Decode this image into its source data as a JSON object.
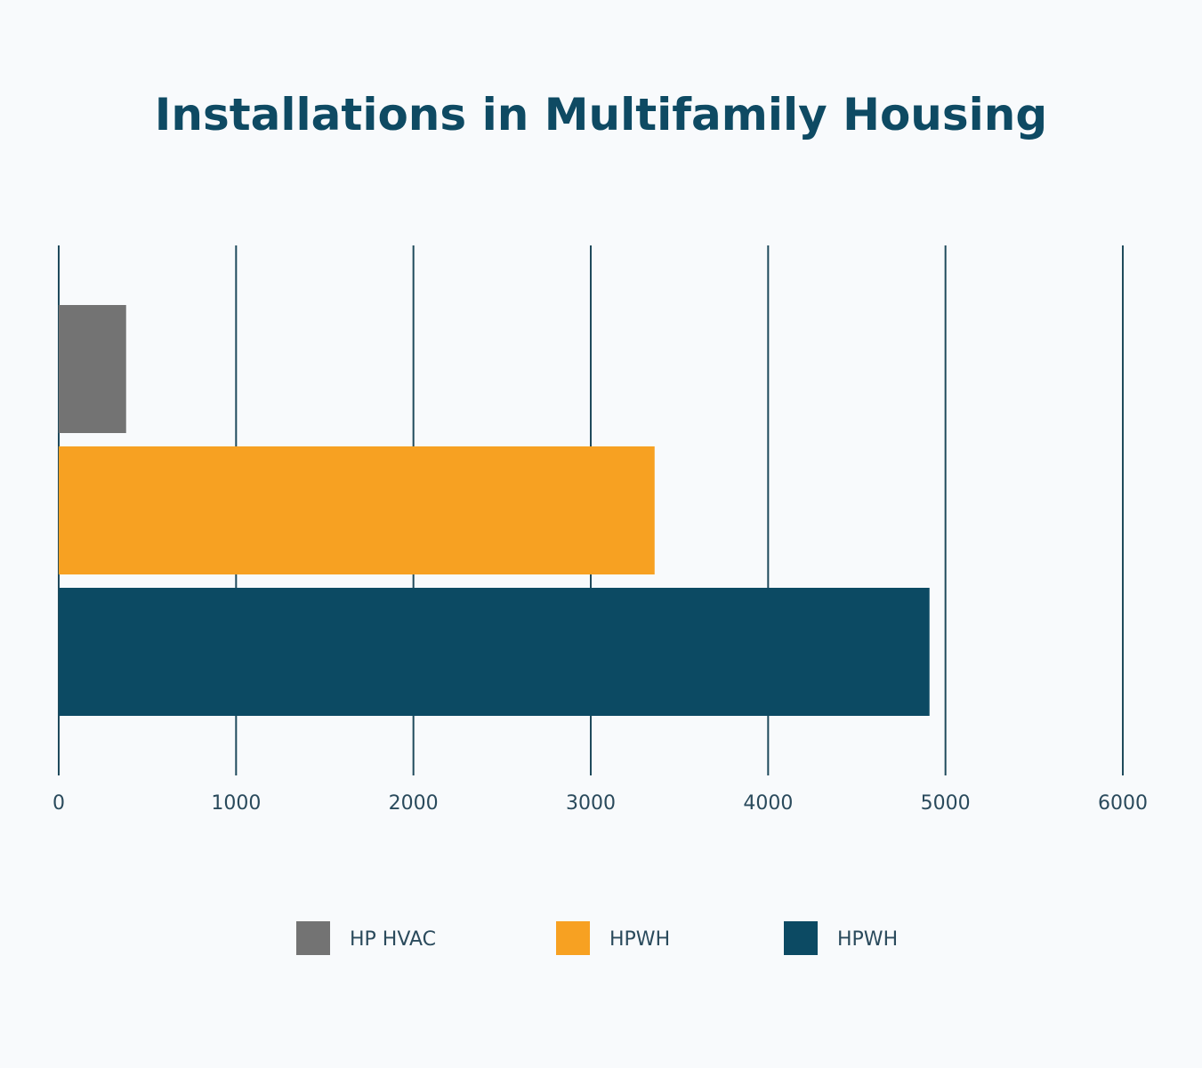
{
  "chart_data": {
    "type": "bar",
    "orientation": "horizontal",
    "title": "Installations in Multifamily Housing",
    "xlabel": "",
    "ylabel": "",
    "xlim": [
      0,
      6000
    ],
    "xticks": [
      0,
      1000,
      2000,
      3000,
      4000,
      5000,
      6000
    ],
    "grid": "vertical",
    "legend_position": "bottom",
    "series": [
      {
        "name": "HP HVAC",
        "value": 380,
        "color": "#737373"
      },
      {
        "name": "HPWH",
        "value": 3360,
        "color": "#f7a122"
      },
      {
        "name": "HPWH",
        "value": 4910,
        "color": "#0c4a63"
      }
    ]
  }
}
